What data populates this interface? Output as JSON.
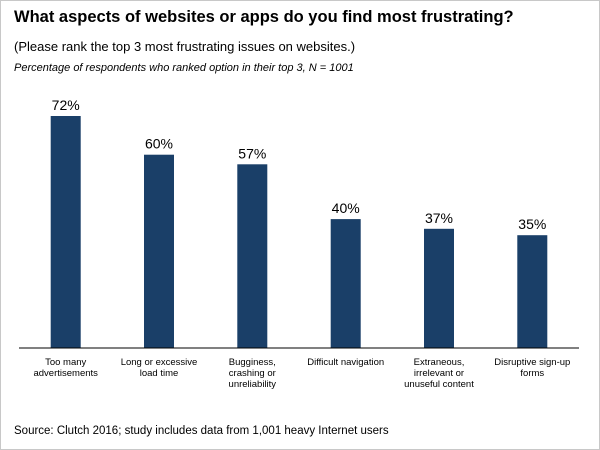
{
  "title": "What aspects of websites or apps do you find most frustrating?",
  "subtitle": "(Please rank the top 3 most frustrating issues on websites.)",
  "note": "Percentage of respondents who ranked option in their top 3, N = 1001",
  "source": "Source: Clutch 2016; study includes data from 1,001 heavy Internet users",
  "colors": {
    "bar": "#1a3f68",
    "axis": "#000000"
  },
  "chart_data": {
    "type": "bar",
    "categories": [
      [
        "Too many",
        "advertisements"
      ],
      [
        "Long or excessive",
        "load time"
      ],
      [
        "Bugginess,",
        "crashing or",
        "unreliability"
      ],
      [
        "Difficult navigation"
      ],
      [
        "Extraneous,",
        "irrelevant or",
        "unuseful content"
      ],
      [
        "Disruptive sign-up",
        "forms"
      ]
    ],
    "values": [
      72,
      60,
      57,
      40,
      37,
      35
    ],
    "value_labels": [
      "72%",
      "60%",
      "57%",
      "40%",
      "37%",
      "35%"
    ],
    "ylim": [
      0,
      72
    ],
    "grid": false,
    "legend": "none"
  }
}
